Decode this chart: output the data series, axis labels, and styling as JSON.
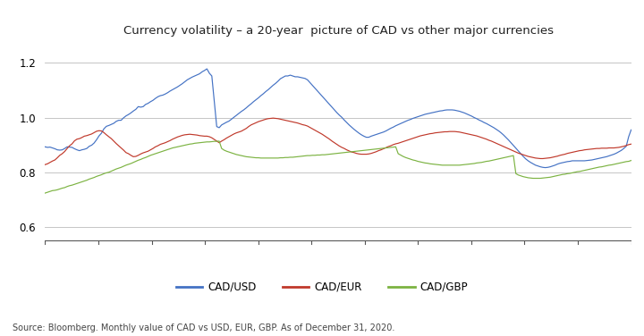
{
  "title": "Currency volatility – a 20-year  picture of CAD vs other major currencies",
  "source_text": "Source: Bloomberg. Monthly value of CAD vs USD, EUR, GBP. As of December 31, 2020.",
  "legend_labels": [
    "CAD/USD",
    "CAD/EUR",
    "CAD/GBP"
  ],
  "colors": [
    "#4472C4",
    "#C0392B",
    "#7CB342"
  ],
  "ylim": [
    0.57,
    1.27
  ],
  "yticks": [
    0.6,
    0.8,
    1.0,
    1.2
  ],
  "background_color": "#FFFFFF",
  "cad_usd": [
    0.893,
    0.891,
    0.892,
    0.889,
    0.886,
    0.882,
    0.881,
    0.882,
    0.887,
    0.893,
    0.892,
    0.891,
    0.886,
    0.882,
    0.879,
    0.882,
    0.884,
    0.887,
    0.895,
    0.899,
    0.907,
    0.919,
    0.933,
    0.943,
    0.959,
    0.968,
    0.971,
    0.975,
    0.979,
    0.986,
    0.99,
    0.99,
    0.999,
    1.006,
    1.011,
    1.017,
    1.024,
    1.03,
    1.04,
    1.038,
    1.04,
    1.048,
    1.052,
    1.058,
    1.063,
    1.07,
    1.076,
    1.08,
    1.082,
    1.086,
    1.091,
    1.097,
    1.102,
    1.107,
    1.112,
    1.118,
    1.124,
    1.131,
    1.138,
    1.143,
    1.148,
    1.152,
    1.156,
    1.16,
    1.167,
    1.172,
    1.178,
    1.162,
    1.152,
    1.06,
    0.967,
    0.963,
    0.973,
    0.978,
    0.983,
    0.987,
    0.994,
    1.001,
    1.008,
    1.015,
    1.022,
    1.028,
    1.035,
    1.043,
    1.05,
    1.058,
    1.065,
    1.072,
    1.08,
    1.087,
    1.095,
    1.102,
    1.11,
    1.118,
    1.125,
    1.133,
    1.142,
    1.147,
    1.152,
    1.152,
    1.155,
    1.152,
    1.149,
    1.149,
    1.147,
    1.145,
    1.143,
    1.138,
    1.128,
    1.118,
    1.108,
    1.098,
    1.088,
    1.078,
    1.068,
    1.058,
    1.048,
    1.038,
    1.028,
    1.018,
    1.009,
    1.001,
    0.991,
    0.982,
    0.973,
    0.965,
    0.957,
    0.95,
    0.943,
    0.937,
    0.932,
    0.928,
    0.928,
    0.932,
    0.935,
    0.938,
    0.941,
    0.944,
    0.947,
    0.951,
    0.956,
    0.961,
    0.965,
    0.97,
    0.974,
    0.978,
    0.982,
    0.986,
    0.99,
    0.993,
    0.997,
    1.0,
    1.003,
    1.006,
    1.009,
    1.012,
    1.014,
    1.016,
    1.018,
    1.02,
    1.022,
    1.024,
    1.025,
    1.027,
    1.028,
    1.028,
    1.028,
    1.027,
    1.025,
    1.023,
    1.02,
    1.017,
    1.013,
    1.009,
    1.005,
    1.0,
    0.996,
    0.991,
    0.987,
    0.982,
    0.978,
    0.973,
    0.968,
    0.963,
    0.957,
    0.951,
    0.944,
    0.936,
    0.927,
    0.918,
    0.908,
    0.898,
    0.888,
    0.878,
    0.868,
    0.858,
    0.849,
    0.842,
    0.836,
    0.831,
    0.826,
    0.823,
    0.82,
    0.818,
    0.817,
    0.818,
    0.82,
    0.823,
    0.826,
    0.83,
    0.833,
    0.835,
    0.837,
    0.839,
    0.84,
    0.842,
    0.842,
    0.842,
    0.842,
    0.842,
    0.842,
    0.843,
    0.844,
    0.845,
    0.847,
    0.849,
    0.851,
    0.853,
    0.855,
    0.857,
    0.86,
    0.863,
    0.866,
    0.87,
    0.875,
    0.88,
    0.887,
    0.895,
    0.93,
    0.955
  ],
  "cad_eur": [
    0.828,
    0.831,
    0.836,
    0.841,
    0.845,
    0.853,
    0.862,
    0.868,
    0.876,
    0.887,
    0.897,
    0.904,
    0.915,
    0.921,
    0.923,
    0.927,
    0.932,
    0.934,
    0.937,
    0.94,
    0.945,
    0.95,
    0.952,
    0.951,
    0.945,
    0.937,
    0.93,
    0.923,
    0.914,
    0.905,
    0.897,
    0.889,
    0.881,
    0.872,
    0.868,
    0.862,
    0.857,
    0.858,
    0.862,
    0.867,
    0.871,
    0.874,
    0.877,
    0.882,
    0.887,
    0.893,
    0.897,
    0.902,
    0.905,
    0.908,
    0.912,
    0.916,
    0.921,
    0.925,
    0.929,
    0.932,
    0.935,
    0.937,
    0.938,
    0.939,
    0.938,
    0.937,
    0.936,
    0.934,
    0.933,
    0.932,
    0.932,
    0.93,
    0.926,
    0.92,
    0.914,
    0.908,
    0.914,
    0.919,
    0.925,
    0.93,
    0.935,
    0.94,
    0.944,
    0.947,
    0.95,
    0.955,
    0.96,
    0.967,
    0.973,
    0.977,
    0.981,
    0.985,
    0.988,
    0.991,
    0.994,
    0.996,
    0.997,
    0.998,
    0.997,
    0.996,
    0.994,
    0.992,
    0.99,
    0.988,
    0.986,
    0.984,
    0.982,
    0.98,
    0.977,
    0.974,
    0.972,
    0.969,
    0.964,
    0.959,
    0.954,
    0.949,
    0.944,
    0.939,
    0.933,
    0.927,
    0.921,
    0.914,
    0.908,
    0.902,
    0.896,
    0.891,
    0.887,
    0.882,
    0.878,
    0.874,
    0.872,
    0.869,
    0.867,
    0.866,
    0.866,
    0.866,
    0.867,
    0.869,
    0.872,
    0.875,
    0.879,
    0.882,
    0.886,
    0.89,
    0.894,
    0.897,
    0.901,
    0.904,
    0.906,
    0.909,
    0.912,
    0.915,
    0.918,
    0.921,
    0.924,
    0.927,
    0.93,
    0.933,
    0.935,
    0.937,
    0.939,
    0.941,
    0.942,
    0.944,
    0.945,
    0.946,
    0.947,
    0.948,
    0.948,
    0.949,
    0.949,
    0.949,
    0.948,
    0.947,
    0.945,
    0.943,
    0.941,
    0.939,
    0.937,
    0.935,
    0.933,
    0.93,
    0.927,
    0.924,
    0.921,
    0.917,
    0.914,
    0.91,
    0.906,
    0.902,
    0.898,
    0.894,
    0.89,
    0.886,
    0.882,
    0.878,
    0.874,
    0.87,
    0.867,
    0.864,
    0.861,
    0.858,
    0.856,
    0.854,
    0.852,
    0.851,
    0.85,
    0.85,
    0.851,
    0.852,
    0.853,
    0.855,
    0.857,
    0.859,
    0.862,
    0.864,
    0.866,
    0.869,
    0.871,
    0.873,
    0.875,
    0.877,
    0.879,
    0.88,
    0.882,
    0.883,
    0.884,
    0.885,
    0.886,
    0.887,
    0.887,
    0.888,
    0.888,
    0.888,
    0.889,
    0.889,
    0.889,
    0.89,
    0.891,
    0.893,
    0.895,
    0.898,
    0.901,
    0.903
  ],
  "cad_gbp": [
    0.724,
    0.727,
    0.73,
    0.733,
    0.734,
    0.736,
    0.739,
    0.742,
    0.744,
    0.748,
    0.751,
    0.753,
    0.756,
    0.759,
    0.762,
    0.765,
    0.768,
    0.771,
    0.775,
    0.778,
    0.781,
    0.785,
    0.788,
    0.791,
    0.795,
    0.798,
    0.8,
    0.804,
    0.808,
    0.812,
    0.815,
    0.818,
    0.822,
    0.826,
    0.829,
    0.832,
    0.836,
    0.84,
    0.844,
    0.847,
    0.851,
    0.854,
    0.858,
    0.862,
    0.865,
    0.868,
    0.871,
    0.874,
    0.877,
    0.88,
    0.883,
    0.886,
    0.889,
    0.891,
    0.893,
    0.895,
    0.897,
    0.899,
    0.901,
    0.903,
    0.904,
    0.906,
    0.907,
    0.908,
    0.909,
    0.91,
    0.911,
    0.911,
    0.912,
    0.913,
    0.913,
    0.914,
    0.887,
    0.881,
    0.877,
    0.874,
    0.871,
    0.868,
    0.865,
    0.863,
    0.861,
    0.859,
    0.857,
    0.856,
    0.855,
    0.854,
    0.853,
    0.853,
    0.852,
    0.852,
    0.852,
    0.852,
    0.852,
    0.852,
    0.852,
    0.852,
    0.853,
    0.853,
    0.854,
    0.854,
    0.855,
    0.855,
    0.856,
    0.857,
    0.858,
    0.859,
    0.86,
    0.861,
    0.861,
    0.862,
    0.862,
    0.863,
    0.863,
    0.864,
    0.864,
    0.865,
    0.866,
    0.867,
    0.868,
    0.869,
    0.87,
    0.871,
    0.872,
    0.873,
    0.874,
    0.875,
    0.876,
    0.877,
    0.878,
    0.879,
    0.88,
    0.881,
    0.882,
    0.883,
    0.884,
    0.885,
    0.886,
    0.887,
    0.888,
    0.889,
    0.89,
    0.891,
    0.892,
    0.893,
    0.868,
    0.863,
    0.858,
    0.854,
    0.851,
    0.848,
    0.845,
    0.843,
    0.84,
    0.838,
    0.836,
    0.834,
    0.833,
    0.831,
    0.83,
    0.829,
    0.828,
    0.827,
    0.826,
    0.826,
    0.826,
    0.826,
    0.826,
    0.826,
    0.826,
    0.826,
    0.827,
    0.828,
    0.829,
    0.83,
    0.831,
    0.832,
    0.834,
    0.835,
    0.836,
    0.838,
    0.84,
    0.841,
    0.843,
    0.845,
    0.847,
    0.849,
    0.851,
    0.853,
    0.855,
    0.857,
    0.859,
    0.861,
    0.795,
    0.79,
    0.787,
    0.784,
    0.782,
    0.78,
    0.779,
    0.778,
    0.778,
    0.778,
    0.778,
    0.779,
    0.78,
    0.781,
    0.782,
    0.784,
    0.786,
    0.788,
    0.79,
    0.792,
    0.793,
    0.795,
    0.796,
    0.798,
    0.8,
    0.802,
    0.803,
    0.805,
    0.807,
    0.809,
    0.811,
    0.813,
    0.815,
    0.817,
    0.819,
    0.82,
    0.822,
    0.824,
    0.826,
    0.827,
    0.829,
    0.831,
    0.833,
    0.835,
    0.837,
    0.839,
    0.84,
    0.843
  ]
}
